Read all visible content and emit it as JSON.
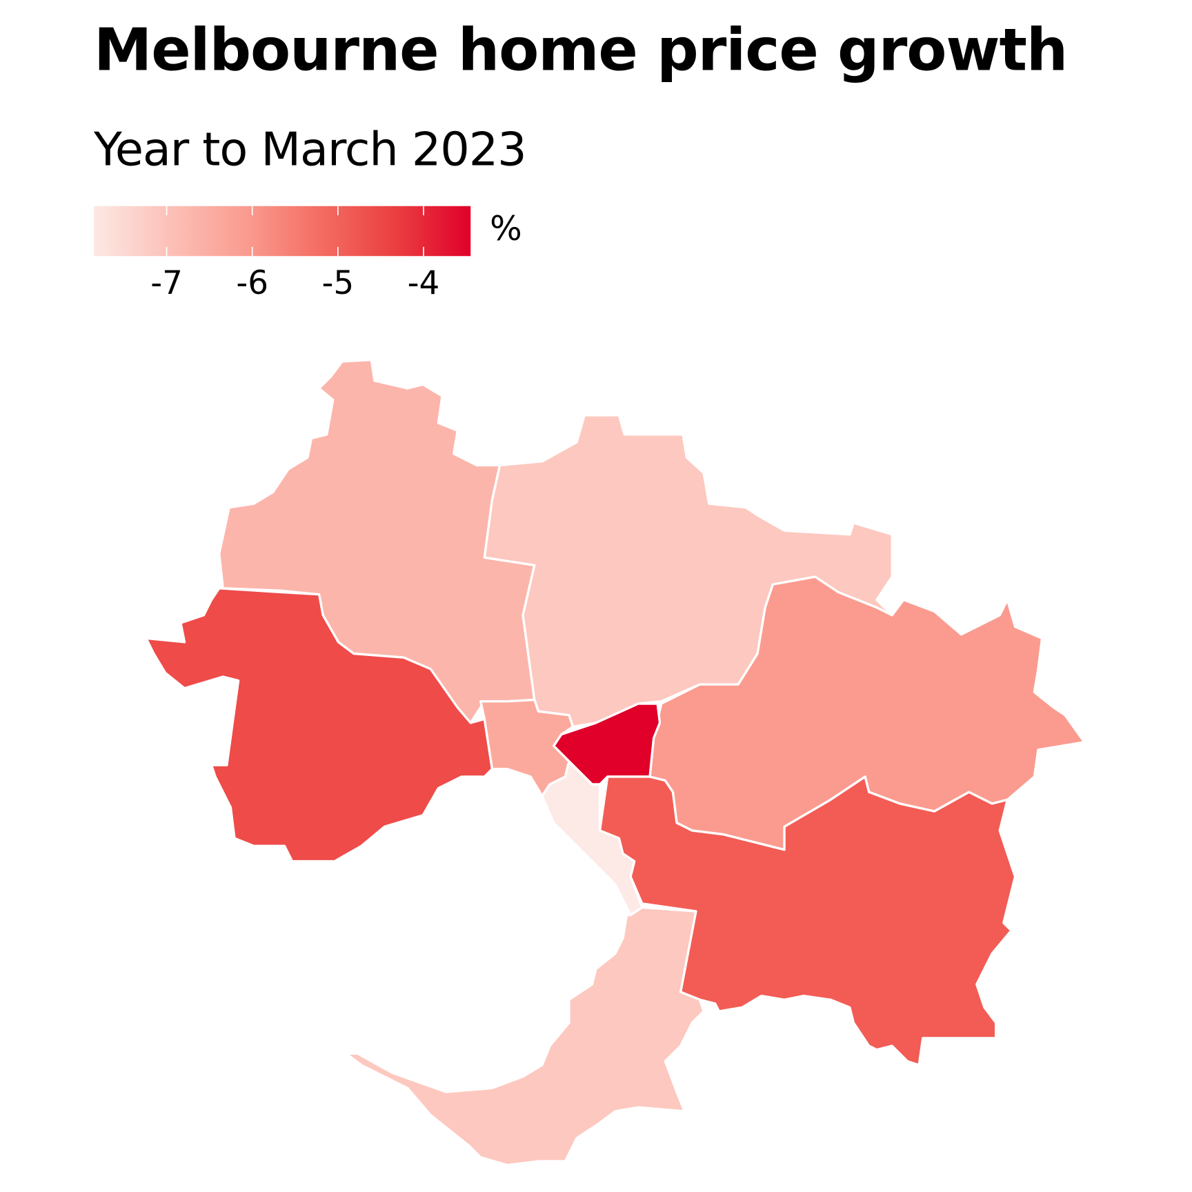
{
  "title": "Melbourne home price growth",
  "subtitle": "Year to March 2023",
  "chart_data": {
    "type": "choropleth",
    "title": "Melbourne home price growth",
    "subtitle": "Year to March 2023",
    "legend": {
      "unit": "%",
      "ticks": [
        -7,
        -6,
        -5,
        -4
      ],
      "tick_labels": [
        "-7",
        "-6",
        "-5",
        "-4"
      ],
      "range": [
        -7.85,
        -3.45
      ],
      "colors": [
        "#fde8e4",
        "#fcc1b8",
        "#fa9c90",
        "#f46d63",
        "#ea3f41",
        "#e0002a"
      ]
    },
    "regions": [
      {
        "id": "north-west",
        "color": "#fcb5ab"
      },
      {
        "id": "north",
        "color": "#fdc8bf"
      },
      {
        "id": "west",
        "color": "#ee4b49"
      },
      {
        "id": "east",
        "color": "#fb9b8f"
      },
      {
        "id": "inner",
        "color": "#e0002a"
      },
      {
        "id": "inner-west",
        "color": "#fca99d"
      },
      {
        "id": "bayside",
        "color": "#fdeae6"
      },
      {
        "id": "south-east",
        "color": "#f25c55"
      },
      {
        "id": "mornington-peninsula",
        "color": "#fdc8bf"
      }
    ]
  }
}
